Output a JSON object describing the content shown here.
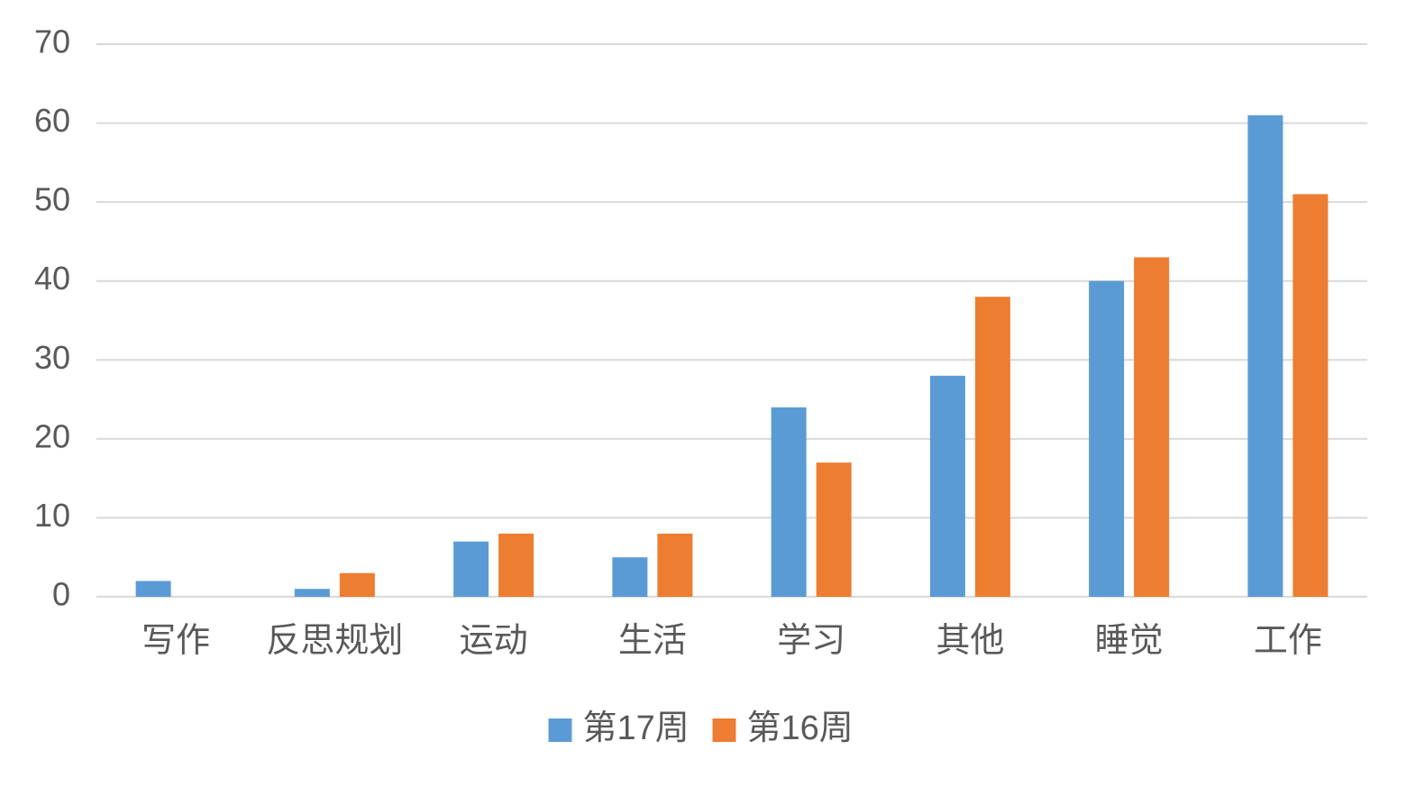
{
  "chart_data": {
    "type": "bar",
    "categories": [
      "写作",
      "反思规划",
      "运动",
      "生活",
      "学习",
      "其他",
      "睡觉",
      "工作"
    ],
    "series": [
      {
        "name": "第17周",
        "color": "#5b9bd5",
        "values": [
          2,
          1,
          7,
          5,
          24,
          28,
          40,
          61
        ]
      },
      {
        "name": "第16周",
        "color": "#ed7d31",
        "values": [
          0,
          3,
          8,
          8,
          17,
          38,
          43,
          51
        ]
      }
    ],
    "ylim": [
      0,
      70
    ],
    "yticks": [
      0,
      10,
      20,
      30,
      40,
      50,
      60,
      70
    ],
    "grid": true,
    "legend": "bottom"
  }
}
